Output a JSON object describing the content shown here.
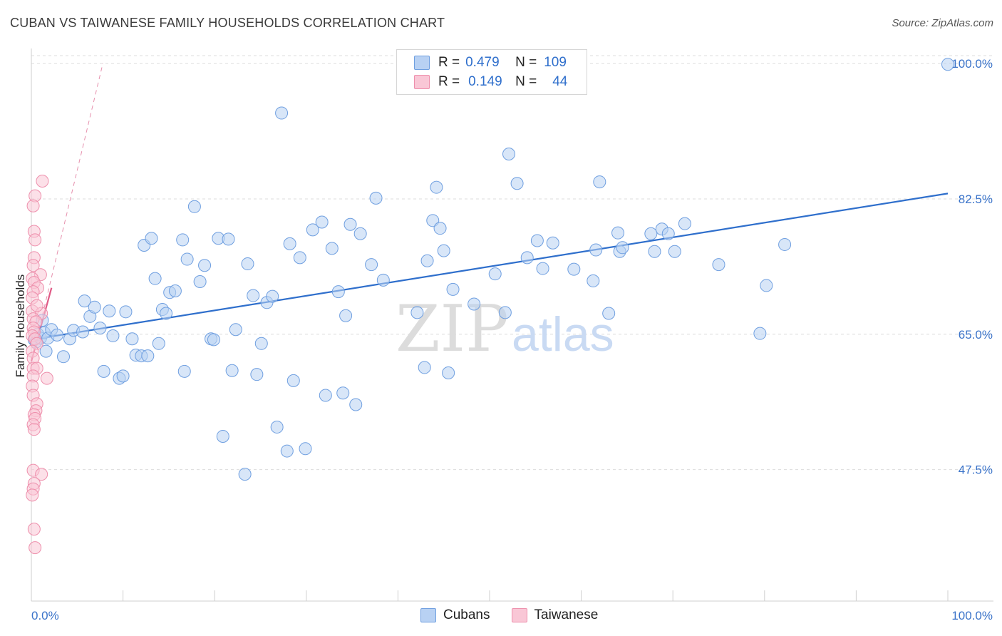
{
  "title": "CUBAN VS TAIWANESE FAMILY HOUSEHOLDS CORRELATION CHART",
  "source": "Source: ZipAtlas.com",
  "watermark": {
    "zip": "ZIP",
    "atlas": "atlas"
  },
  "legend": {
    "r_label": "R =",
    "n_label": "N =",
    "rows": [
      {
        "r": "0.479",
        "n": "109",
        "fill": "#b8d1f3",
        "stroke": "#6f9fe0"
      },
      {
        "r": "0.149",
        "n": "44",
        "fill": "#f9c7d6",
        "stroke": "#ee8fac"
      }
    ]
  },
  "bottom_legend": [
    {
      "label": "Cubans",
      "fill": "#b8d1f3",
      "stroke": "#6f9fe0"
    },
    {
      "label": "Taiwanese",
      "fill": "#f9c7d6",
      "stroke": "#ee8fac"
    }
  ],
  "chart_data": {
    "type": "scatter",
    "title": "CUBAN VS TAIWANESE FAMILY HOUSEHOLDS CORRELATION CHART",
    "ylabel": "Family Households",
    "xlabel": "",
    "xlim": [
      0,
      100
    ],
    "ylim": [
      30.5,
      102.5
    ],
    "x_tick_labels": [
      "0.0%",
      "100.0%"
    ],
    "y_ticks": [
      47.5,
      65.0,
      82.5,
      100.0
    ],
    "y_tick_labels": [
      "47.5%",
      "65.0%",
      "82.5%",
      "100.0%"
    ],
    "series": [
      {
        "name": "Cubans",
        "color": "#6f9fe0",
        "fill": "#b8d1f3",
        "trend": {
          "x": [
            0,
            100
          ],
          "y": [
            64.3,
            83.2
          ],
          "color": "#2f6fcc"
        },
        "points": [
          [
            0.3,
            64.3
          ],
          [
            0.5,
            64.0
          ],
          [
            0.7,
            65.0
          ],
          [
            1.0,
            64.5
          ],
          [
            1.2,
            66.8
          ],
          [
            1.4,
            65.2
          ],
          [
            1.6,
            62.8
          ],
          [
            1.8,
            64.5
          ],
          [
            2.2,
            65.6
          ],
          [
            2.8,
            64.9
          ],
          [
            3.5,
            62.1
          ],
          [
            4.2,
            64.4
          ],
          [
            4.6,
            65.5
          ],
          [
            5.6,
            65.3
          ],
          [
            5.8,
            69.3
          ],
          [
            6.4,
            67.3
          ],
          [
            6.9,
            68.5
          ],
          [
            7.5,
            65.8
          ],
          [
            7.9,
            60.2
          ],
          [
            8.5,
            68.0
          ],
          [
            8.9,
            64.8
          ],
          [
            9.6,
            59.3
          ],
          [
            10.0,
            59.6
          ],
          [
            10.3,
            67.9
          ],
          [
            11.0,
            64.4
          ],
          [
            11.4,
            62.3
          ],
          [
            12.0,
            62.2
          ],
          [
            12.3,
            76.5
          ],
          [
            12.7,
            62.2
          ],
          [
            13.1,
            77.4
          ],
          [
            13.5,
            72.2
          ],
          [
            13.9,
            63.8
          ],
          [
            14.3,
            68.2
          ],
          [
            14.7,
            67.7
          ],
          [
            15.1,
            70.4
          ],
          [
            15.7,
            70.6
          ],
          [
            16.5,
            77.2
          ],
          [
            16.7,
            60.2
          ],
          [
            17.0,
            74.7
          ],
          [
            17.8,
            81.5
          ],
          [
            18.4,
            71.8
          ],
          [
            18.9,
            73.9
          ],
          [
            19.6,
            64.4
          ],
          [
            19.9,
            64.3
          ],
          [
            20.4,
            77.4
          ],
          [
            20.9,
            51.8
          ],
          [
            21.5,
            77.3
          ],
          [
            21.9,
            60.3
          ],
          [
            22.3,
            65.6
          ],
          [
            23.3,
            46.9
          ],
          [
            23.6,
            74.1
          ],
          [
            24.2,
            70.0
          ],
          [
            24.6,
            59.8
          ],
          [
            25.1,
            63.8
          ],
          [
            25.7,
            69.1
          ],
          [
            26.3,
            69.9
          ],
          [
            26.8,
            53.0
          ],
          [
            27.3,
            93.6
          ],
          [
            27.9,
            49.9
          ],
          [
            28.2,
            76.7
          ],
          [
            28.6,
            59.0
          ],
          [
            29.3,
            74.9
          ],
          [
            29.9,
            50.2
          ],
          [
            30.7,
            78.5
          ],
          [
            31.7,
            79.5
          ],
          [
            32.1,
            57.1
          ],
          [
            32.8,
            76.1
          ],
          [
            33.5,
            70.5
          ],
          [
            34.0,
            57.4
          ],
          [
            34.3,
            67.4
          ],
          [
            34.8,
            79.2
          ],
          [
            35.4,
            55.9
          ],
          [
            35.9,
            78.0
          ],
          [
            37.1,
            74.0
          ],
          [
            37.6,
            82.6
          ],
          [
            38.4,
            72.0
          ],
          [
            42.1,
            67.8
          ],
          [
            42.9,
            60.7
          ],
          [
            43.2,
            74.5
          ],
          [
            43.8,
            79.7
          ],
          [
            44.2,
            84.0
          ],
          [
            44.6,
            78.7
          ],
          [
            45.0,
            75.8
          ],
          [
            45.5,
            60.0
          ],
          [
            46.0,
            70.8
          ],
          [
            48.3,
            68.9
          ],
          [
            50.6,
            72.8
          ],
          [
            51.7,
            67.8
          ],
          [
            52.1,
            88.3
          ],
          [
            53.0,
            84.5
          ],
          [
            54.1,
            74.9
          ],
          [
            55.2,
            77.1
          ],
          [
            55.8,
            73.5
          ],
          [
            56.9,
            76.8
          ],
          [
            59.2,
            73.4
          ],
          [
            61.3,
            71.9
          ],
          [
            61.6,
            75.9
          ],
          [
            62.0,
            84.7
          ],
          [
            63.0,
            67.7
          ],
          [
            64.0,
            78.1
          ],
          [
            64.2,
            75.7
          ],
          [
            64.5,
            76.2
          ],
          [
            67.6,
            78.0
          ],
          [
            68.0,
            75.7
          ],
          [
            68.8,
            78.6
          ],
          [
            69.5,
            78.0
          ],
          [
            70.2,
            75.7
          ],
          [
            71.3,
            79.3
          ],
          [
            75.0,
            74.0
          ],
          [
            79.5,
            65.1
          ],
          [
            80.2,
            71.3
          ],
          [
            82.2,
            76.6
          ],
          [
            100.0,
            99.9
          ]
        ]
      },
      {
        "name": "Taiwanese",
        "color": "#ee8fac",
        "fill": "#f9c7d6",
        "trend": {
          "x": [
            0,
            2.2
          ],
          "y": [
            61.5,
            71.0
          ],
          "color": "#e05a86"
        },
        "trend_extended": {
          "x": [
            0,
            7.8
          ],
          "y": [
            61.5,
            100.0
          ],
          "color": "#e690ad"
        },
        "points": [
          [
            1.2,
            84.8
          ],
          [
            0.4,
            82.9
          ],
          [
            0.2,
            81.6
          ],
          [
            0.3,
            78.3
          ],
          [
            0.4,
            77.2
          ],
          [
            0.3,
            74.9
          ],
          [
            0.2,
            73.9
          ],
          [
            1.0,
            72.7
          ],
          [
            0.1,
            72.2
          ],
          [
            0.3,
            71.7
          ],
          [
            0.7,
            71.0
          ],
          [
            0.2,
            70.5
          ],
          [
            0.1,
            69.7
          ],
          [
            0.1,
            68.0
          ],
          [
            1.1,
            67.7
          ],
          [
            0.2,
            67.0
          ],
          [
            0.5,
            66.6
          ],
          [
            0.2,
            65.8
          ],
          [
            0.3,
            65.3
          ],
          [
            0.1,
            64.8
          ],
          [
            0.4,
            64.4
          ],
          [
            0.6,
            63.8
          ],
          [
            0.1,
            62.8
          ],
          [
            0.2,
            61.9
          ],
          [
            0.2,
            60.6
          ],
          [
            0.6,
            60.6
          ],
          [
            1.7,
            59.3
          ],
          [
            0.2,
            59.6
          ],
          [
            0.1,
            58.3
          ],
          [
            0.2,
            57.1
          ],
          [
            0.6,
            56.0
          ],
          [
            0.5,
            55.1
          ],
          [
            0.3,
            54.6
          ],
          [
            0.4,
            54.1
          ],
          [
            0.2,
            53.3
          ],
          [
            0.3,
            52.7
          ],
          [
            0.2,
            47.4
          ],
          [
            1.1,
            46.9
          ],
          [
            0.3,
            45.7
          ],
          [
            0.2,
            45.0
          ],
          [
            0.1,
            44.2
          ],
          [
            0.3,
            39.8
          ],
          [
            0.4,
            37.4
          ],
          [
            0.6,
            68.7
          ]
        ]
      }
    ]
  }
}
